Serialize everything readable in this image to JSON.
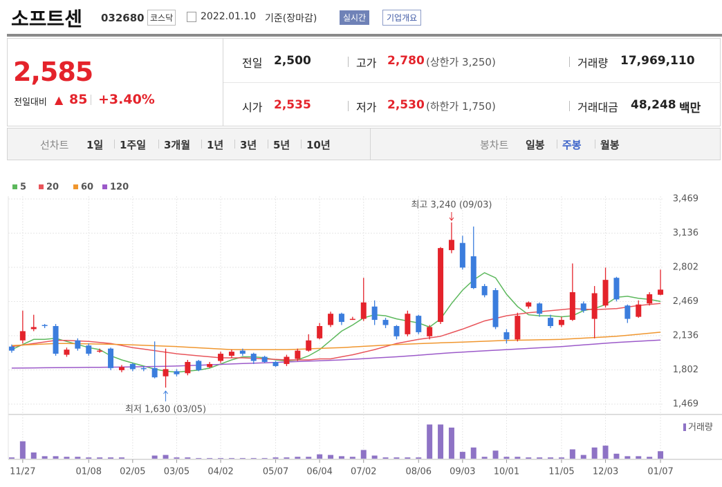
{
  "header": {
    "title": "소프트센",
    "code": "032680",
    "market": "코스닥",
    "date": "2022.01.10",
    "basis": "기준(장마감)",
    "buttons": [
      "실시간",
      "기업개요"
    ]
  },
  "summary": {
    "price": "2,585",
    "change_label": "전일대비",
    "change": "85",
    "change_pct": "+3.40%",
    "items": [
      {
        "label": "전일",
        "value": "2,500"
      },
      {
        "label": "고가",
        "value": "2,780",
        "note": "(상한가 3,250)"
      },
      {
        "label": "거래량",
        "value": "17,969,110"
      },
      {
        "label": "시가",
        "value": "2,535"
      },
      {
        "label": "저가",
        "value": "2,530",
        "note": "(하한가 1,750)"
      },
      {
        "label": "거래대금",
        "value": "48,248",
        "unit": "백만"
      }
    ]
  },
  "tabs": {
    "line_label": "선차트",
    "line": [
      "1일",
      "1주일",
      "3개월",
      "1년",
      "3년",
      "5년",
      "10년"
    ],
    "candle_label": "봉차트",
    "candle": [
      "일봉",
      "주봉",
      "월봉"
    ]
  },
  "chart_data": {
    "type": "candlestick",
    "categories": [
      null,
      "11/27",
      null,
      null,
      null,
      null,
      null,
      "01/08",
      null,
      null,
      null,
      "02/05",
      null,
      null,
      null,
      "03/05",
      null,
      null,
      null,
      "04/02",
      null,
      null,
      null,
      null,
      "05/07",
      null,
      null,
      null,
      "06/04",
      null,
      null,
      null,
      "07/02",
      null,
      null,
      null,
      null,
      "08/06",
      null,
      null,
      null,
      "09/03",
      null,
      null,
      null,
      "10/01",
      null,
      null,
      null,
      null,
      "11/05",
      null,
      null,
      null,
      "12/03",
      null,
      null,
      null,
      null,
      "01/07"
    ],
    "open": [
      2030,
      2090,
      2200,
      2240,
      2230,
      1950,
      2090,
      2040,
      1990,
      2010,
      1800,
      1860,
      1820,
      1820,
      1740,
      1790,
      1770,
      1890,
      1830,
      1890,
      1940,
      1990,
      1960,
      1930,
      1880,
      1860,
      1910,
      1990,
      2110,
      2240,
      2350,
      2300,
      2300,
      2420,
      2290,
      2230,
      2150,
      2330,
      2130,
      2270,
      2970,
      3040,
      2910,
      2620,
      2580,
      2170,
      2100,
      2420,
      2450,
      2310,
      2240,
      2290,
      2450,
      2300,
      2430,
      2700,
      2430,
      2320,
      2450,
      2535
    ],
    "high": [
      2050,
      2380,
      2340,
      2250,
      2250,
      2020,
      2110,
      2060,
      2010,
      2020,
      1850,
      1870,
      1840,
      2080,
      2010,
      1810,
      1900,
      1900,
      1880,
      1980,
      2000,
      2010,
      1970,
      1940,
      1890,
      1950,
      2010,
      2150,
      2260,
      2370,
      2360,
      2320,
      2700,
      2480,
      2310,
      2240,
      2380,
      2340,
      2240,
      3000,
      3240,
      3110,
      3200,
      2640,
      2600,
      2200,
      2360,
      2470,
      2460,
      2340,
      2320,
      2840,
      2470,
      2620,
      2800,
      2710,
      2440,
      2480,
      2560,
      2780
    ],
    "low": [
      1970,
      2060,
      2180,
      2210,
      1940,
      1930,
      1990,
      1940,
      1970,
      1800,
      1780,
      1790,
      1790,
      1720,
      1630,
      1740,
      1750,
      1790,
      1820,
      1870,
      1920,
      1940,
      1860,
      1870,
      1830,
      1840,
      1890,
      1980,
      2100,
      2220,
      2240,
      2290,
      2280,
      2240,
      2210,
      2100,
      2130,
      2150,
      2100,
      2250,
      2940,
      2780,
      2590,
      2510,
      2200,
      2060,
      2080,
      2400,
      2320,
      2210,
      2220,
      2280,
      2360,
      2110,
      2410,
      2470,
      2260,
      2310,
      2430,
      2530
    ],
    "close": [
      1990,
      2180,
      2220,
      2230,
      1960,
      2000,
      2010,
      1960,
      1990,
      1820,
      1830,
      1810,
      1810,
      1730,
      1810,
      1760,
      1880,
      1800,
      1860,
      1960,
      1980,
      1960,
      1890,
      1880,
      1840,
      1930,
      1990,
      2090,
      2230,
      2350,
      2270,
      2300,
      2460,
      2290,
      2240,
      2130,
      2350,
      2170,
      2220,
      2990,
      3070,
      2800,
      2600,
      2530,
      2220,
      2100,
      2330,
      2460,
      2350,
      2230,
      2290,
      2560,
      2380,
      2550,
      2680,
      2490,
      2300,
      2440,
      2540,
      2585
    ],
    "up_color": "#e4232b",
    "down_color": "#3b7ddd",
    "series": [
      {
        "name": "5",
        "color": "#5cb85c",
        "values": [
          2000,
          2050,
          2100,
          2100,
          2110,
          2080,
          2050,
          2020,
          2000,
          1940,
          1900,
          1870,
          1840,
          1810,
          1790,
          1780,
          1790,
          1800,
          1820,
          1860,
          1900,
          1930,
          1930,
          1920,
          1900,
          1890,
          1900,
          1940,
          2000,
          2090,
          2180,
          2240,
          2310,
          2340,
          2330,
          2300,
          2280,
          2260,
          2220,
          2300,
          2450,
          2580,
          2680,
          2750,
          2700,
          2540,
          2420,
          2340,
          2330,
          2330,
          2320,
          2330,
          2380,
          2400,
          2440,
          2510,
          2520,
          2500,
          2490,
          2470
        ]
      },
      {
        "name": "20",
        "color": "#e8545a",
        "values": [
          2030,
          2045,
          2060,
          2075,
          2090,
          2090,
          2085,
          2080,
          2070,
          2060,
          2040,
          2020,
          2005,
          1990,
          1975,
          1960,
          1950,
          1940,
          1930,
          1920,
          1920,
          1920,
          1915,
          1910,
          1905,
          1900,
          1900,
          1900,
          1910,
          1910,
          1930,
          1950,
          1975,
          2000,
          2030,
          2060,
          2080,
          2100,
          2115,
          2130,
          2165,
          2200,
          2240,
          2280,
          2305,
          2330,
          2345,
          2360,
          2370,
          2380,
          2390,
          2400,
          2395,
          2390,
          2395,
          2400,
          2415,
          2430,
          2440,
          2450
        ]
      },
      {
        "name": "60",
        "color": "#f0962e",
        "values": [
          2040,
          2045,
          2050,
          2055,
          2060,
          2060,
          2058,
          2056,
          2054,
          2052,
          2050,
          2046,
          2042,
          2038,
          2034,
          2030,
          2024,
          2018,
          2012,
          2006,
          2000,
          2000,
          2000,
          2000,
          2000,
          2000,
          2004,
          2008,
          2012,
          2016,
          2020,
          2026,
          2032,
          2038,
          2044,
          2050,
          2054,
          2058,
          2062,
          2066,
          2070,
          2074,
          2078,
          2082,
          2086,
          2090,
          2092,
          2094,
          2096,
          2098,
          2100,
          2106,
          2112,
          2118,
          2124,
          2130,
          2140,
          2150,
          2160,
          2170
        ]
      },
      {
        "name": "120",
        "color": "#9b59c9",
        "values": [
          1820,
          1821,
          1822,
          1823,
          1824,
          1825,
          1826,
          1827,
          1828,
          1829,
          1830,
          1832,
          1834,
          1836,
          1838,
          1840,
          1844,
          1848,
          1852,
          1856,
          1860,
          1864,
          1868,
          1872,
          1876,
          1880,
          1884,
          1888,
          1892,
          1896,
          1900,
          1906,
          1912,
          1918,
          1924,
          1930,
          1938,
          1946,
          1954,
          1962,
          1970,
          1976,
          1982,
          1988,
          1994,
          2000,
          2006,
          2012,
          2018,
          2024,
          2030,
          2038,
          2046,
          2054,
          2062,
          2070,
          2076,
          2082,
          2088,
          2094
        ]
      }
    ],
    "volume": {
      "name": "거래량",
      "color": "#8e73c5",
      "vlim": [
        0,
        60
      ],
      "values": [
        2,
        28,
        10,
        4,
        4,
        3,
        3,
        2,
        2,
        2,
        2,
        0,
        0,
        5,
        6,
        2,
        2,
        1,
        1,
        1,
        1,
        1,
        1,
        1,
        2,
        2,
        3,
        3,
        7,
        6,
        4,
        3,
        14,
        5,
        2,
        2,
        2,
        2,
        55,
        55,
        50,
        11,
        18,
        3,
        13,
        3,
        3,
        2,
        2,
        2,
        2,
        15,
        6,
        18,
        21,
        8,
        4,
        4,
        3,
        12
      ]
    },
    "ylim": [
      1469,
      3469
    ],
    "yticks": [
      {
        "value": 3469,
        "label": "3,469"
      },
      {
        "value": 3136,
        "label": "3,136"
      },
      {
        "value": 2802,
        "label": "2,802"
      },
      {
        "value": 2469,
        "label": "2,469"
      },
      {
        "value": 2136,
        "label": "2,136"
      },
      {
        "value": 1802,
        "label": "1,802"
      },
      {
        "value": 1469,
        "label": "1,469"
      }
    ],
    "grid": true,
    "annotations": [
      {
        "text": "최고 3,240 (09/03)",
        "color": "#e4232b"
      },
      {
        "text": "최저 1,630 (03/05)",
        "color": "#3b7ddd"
      }
    ]
  }
}
